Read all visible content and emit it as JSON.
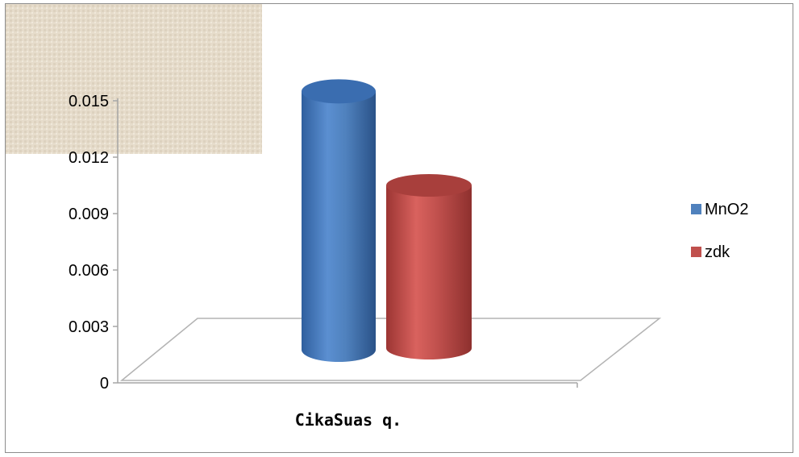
{
  "chart_data": {
    "type": "bar",
    "style": "3d-cylinder",
    "categories": [
      "CikaSuas q."
    ],
    "series": [
      {
        "name": "MnO2",
        "values": [
          0.0155
        ],
        "color": "#4f81bd"
      },
      {
        "name": "zdk",
        "values": [
          0.0105
        ],
        "color": "#c0504d"
      }
    ],
    "ylim": [
      0,
      0.018
    ],
    "yticks": [
      "0",
      "0.003",
      "0.006",
      "0.009",
      "0.012",
      "0.015"
    ],
    "legend_position": "right",
    "grid": false
  }
}
